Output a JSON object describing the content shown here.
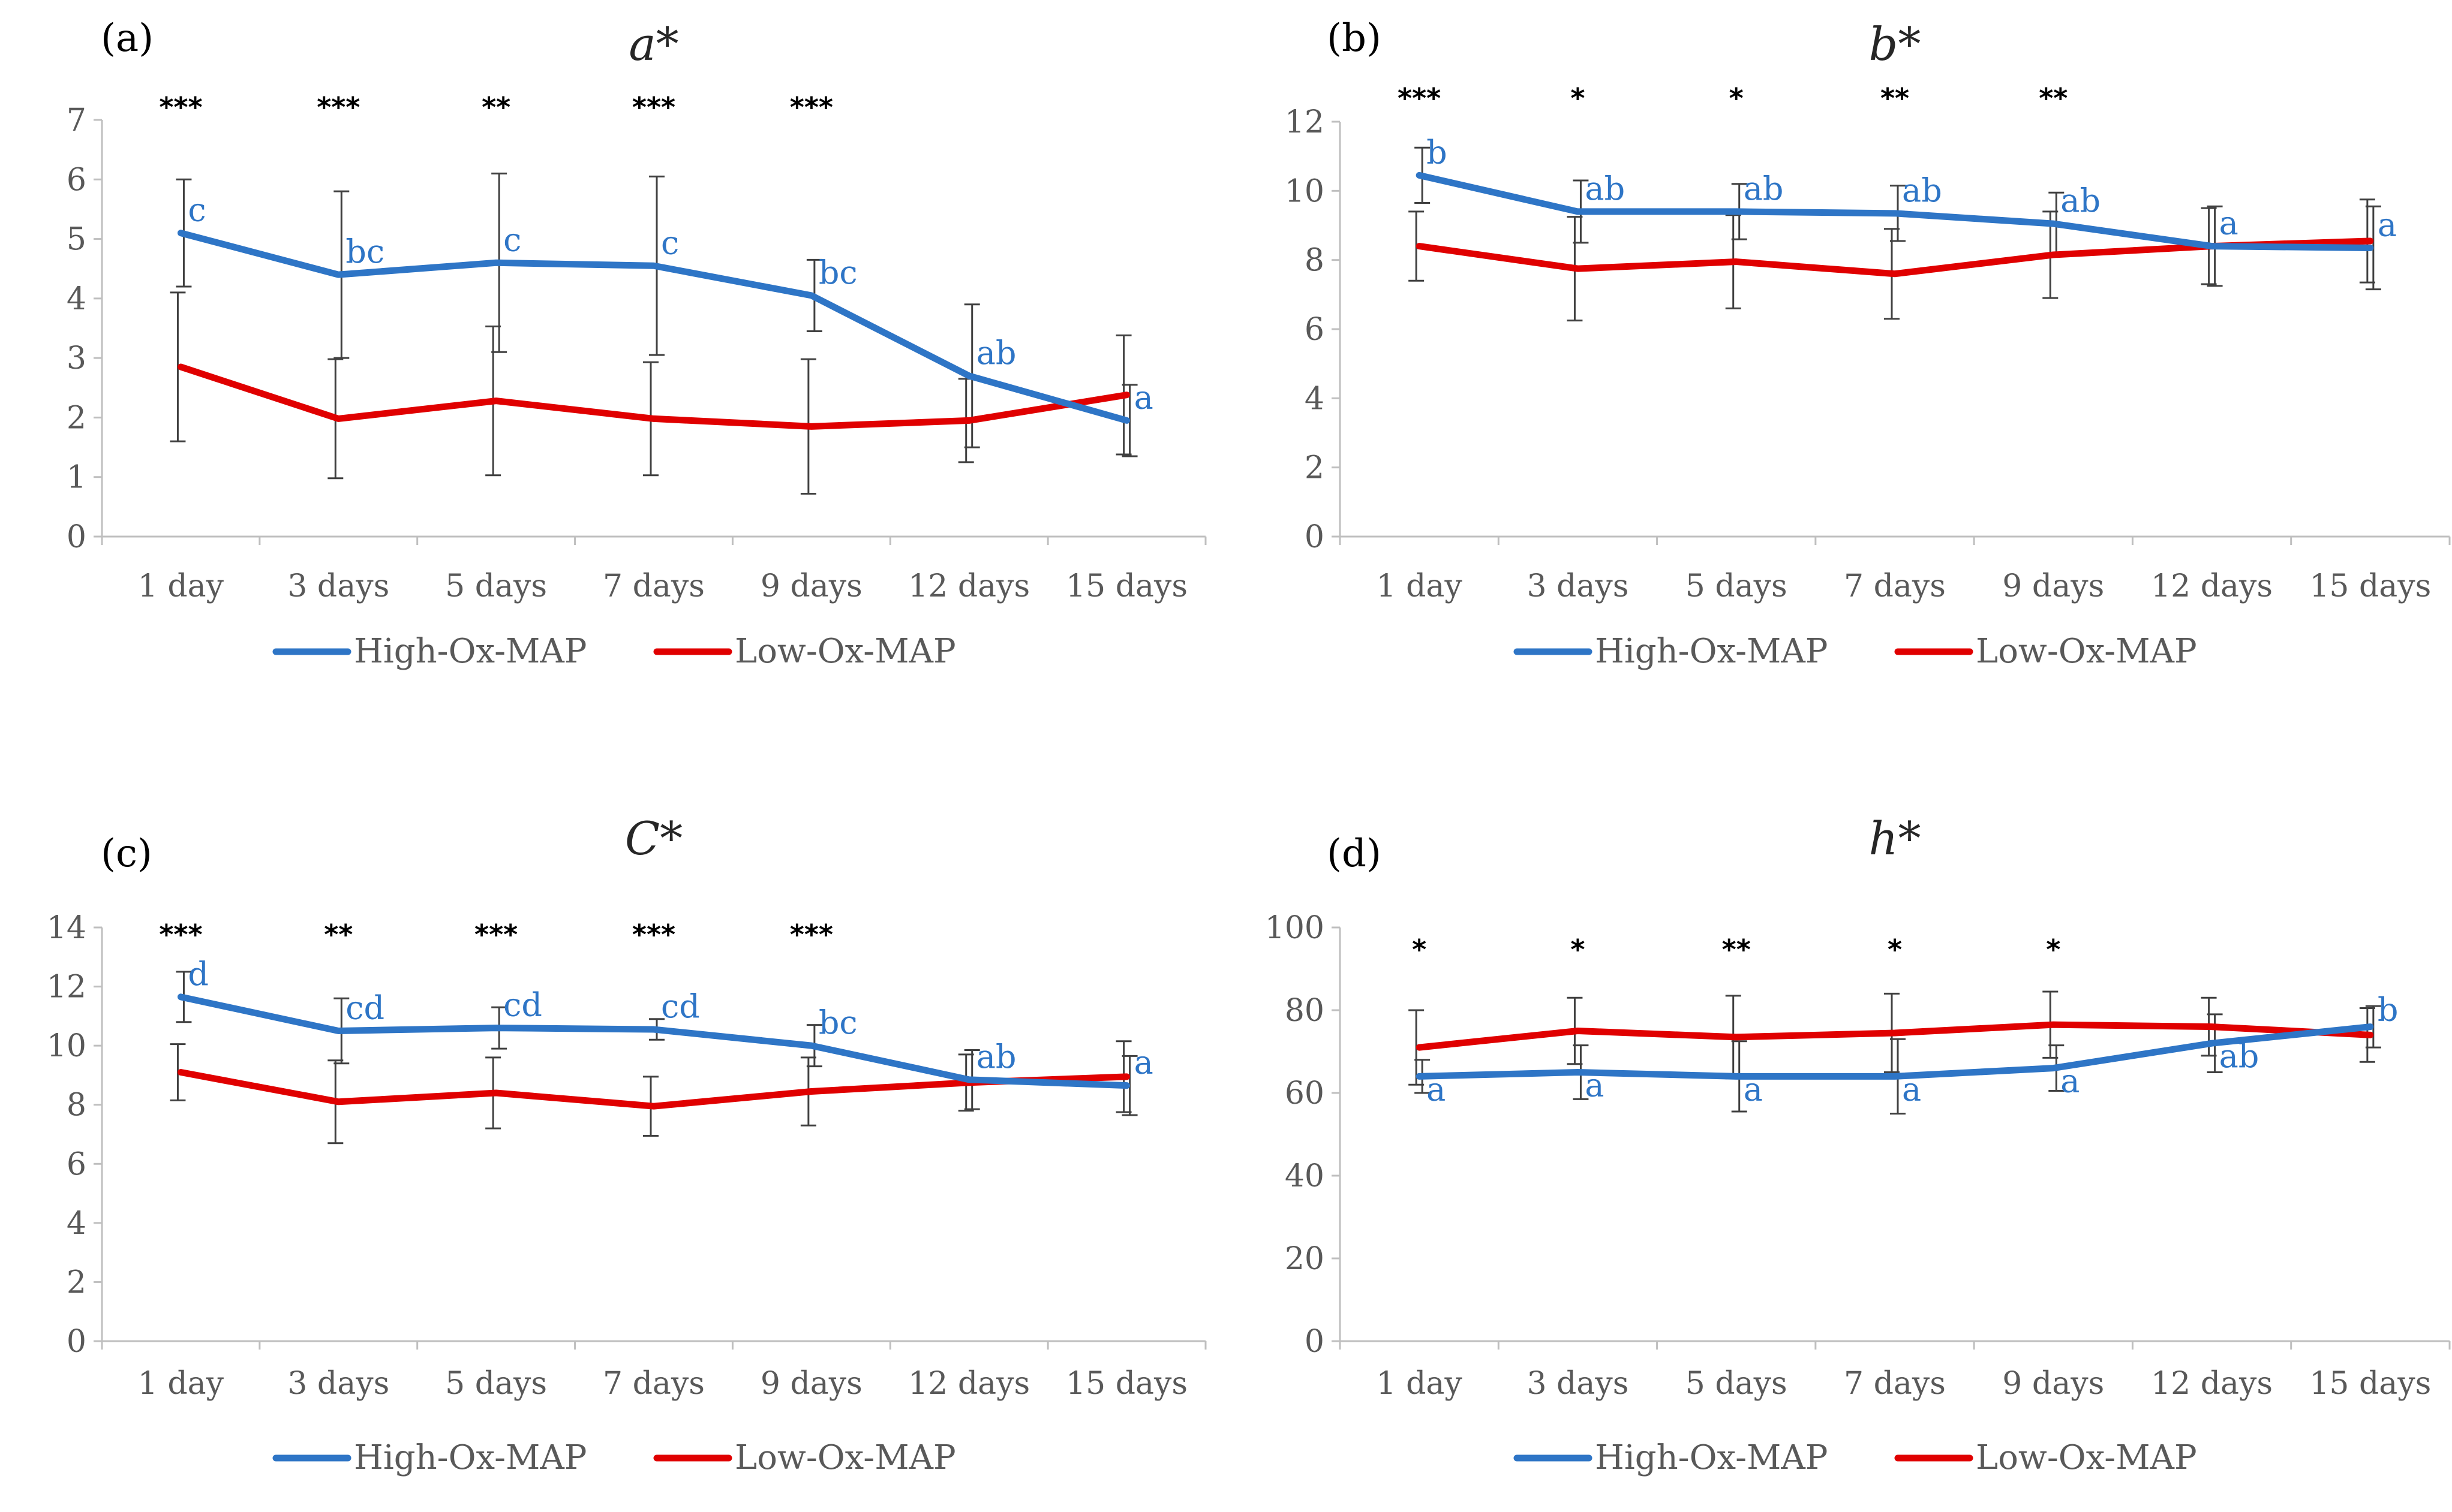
{
  "colors": {
    "high": "#2E75C6",
    "low": "#E00000",
    "axis": "#BFBFBF",
    "error": "#404040",
    "text": "#595959"
  },
  "legend": {
    "high": "High-Ox-MAP",
    "low": "Low-Ox-MAP"
  },
  "chart_data": [
    {
      "type": "line",
      "panel": "(a)",
      "title": "a*",
      "categories": [
        "1 day",
        "3 days",
        "5 days",
        "7 days",
        "9 days",
        "12 days",
        "15 days"
      ],
      "ylim": [
        0,
        7
      ],
      "yticks": [
        0,
        1,
        2,
        3,
        4,
        5,
        6,
        7
      ],
      "series": [
        {
          "name": "High-Ox-MAP",
          "values": [
            5.1,
            4.4,
            4.6,
            4.55,
            4.05,
            2.7,
            1.95
          ],
          "err": [
            0.9,
            1.4,
            1.5,
            1.5,
            0.6,
            1.2,
            0.6
          ],
          "letters": [
            "c",
            "bc",
            "c",
            "c",
            "bc",
            "ab",
            "a"
          ]
        },
        {
          "name": "Low-Ox-MAP",
          "values": [
            2.85,
            1.98,
            2.28,
            1.98,
            1.85,
            1.95,
            2.38
          ],
          "err": [
            1.25,
            1.0,
            1.25,
            0.95,
            1.13,
            0.7,
            1.0
          ]
        }
      ],
      "significance": [
        "***",
        "***",
        "**",
        "***",
        "***",
        "",
        ""
      ]
    },
    {
      "type": "line",
      "panel": "(b)",
      "title": "b*",
      "categories": [
        "1 day",
        "3 days",
        "5 days",
        "7 days",
        "9 days",
        "12 days",
        "15 days"
      ],
      "ylim": [
        0,
        12
      ],
      "yticks": [
        0,
        2,
        4,
        6,
        8,
        10,
        12
      ],
      "series": [
        {
          "name": "High-Ox-MAP",
          "values": [
            10.45,
            9.4,
            9.4,
            9.35,
            9.05,
            8.4,
            8.35
          ],
          "err": [
            0.8,
            0.9,
            0.8,
            0.8,
            0.9,
            1.15,
            1.2
          ],
          "letters": [
            "b",
            "ab",
            "ab",
            "ab",
            "ab",
            "a",
            "a"
          ]
        },
        {
          "name": "Low-Ox-MAP",
          "values": [
            8.4,
            7.75,
            7.95,
            7.6,
            8.15,
            8.4,
            8.55
          ],
          "err": [
            1.0,
            1.5,
            1.35,
            1.3,
            1.25,
            1.1,
            1.2
          ]
        }
      ],
      "significance": [
        "***",
        "*",
        "*",
        "**",
        "**",
        "",
        ""
      ]
    },
    {
      "type": "line",
      "panel": "(c)",
      "title": "C*",
      "categories": [
        "1 day",
        "3 days",
        "5 days",
        "7 days",
        "9 days",
        "12 days",
        "15 days"
      ],
      "ylim": [
        0,
        14
      ],
      "yticks": [
        0,
        2,
        4,
        6,
        8,
        10,
        12,
        14
      ],
      "series": [
        {
          "name": "High-Ox-MAP",
          "values": [
            11.65,
            10.5,
            10.6,
            10.55,
            10.0,
            8.85,
            8.65
          ],
          "err": [
            0.85,
            1.1,
            0.7,
            0.35,
            0.7,
            1.0,
            1.0
          ],
          "letters": [
            "d",
            "cd",
            "cd",
            "cd",
            "bc",
            "ab",
            "a"
          ]
        },
        {
          "name": "Low-Ox-MAP",
          "values": [
            9.1,
            8.1,
            8.4,
            7.95,
            8.45,
            8.75,
            8.95
          ],
          "err": [
            0.95,
            1.4,
            1.2,
            1.0,
            1.15,
            0.95,
            1.2
          ]
        }
      ],
      "significance": [
        "***",
        "**",
        "***",
        "***",
        "***",
        "",
        ""
      ]
    },
    {
      "type": "line",
      "panel": "(d)",
      "title": "h*",
      "categories": [
        "1 day",
        "3 days",
        "5 days",
        "7 days",
        "9 days",
        "12 days",
        "15 days"
      ],
      "ylim": [
        0,
        100
      ],
      "yticks": [
        0,
        20,
        40,
        60,
        80,
        100
      ],
      "series": [
        {
          "name": "High-Ox-MAP",
          "values": [
            64,
            65,
            64,
            64,
            66,
            72,
            76
          ],
          "err": [
            4,
            6.5,
            8.5,
            9,
            5.5,
            7,
            5
          ],
          "letters": [
            "a",
            "a",
            "a",
            "a",
            "a",
            "ab",
            "b"
          ]
        },
        {
          "name": "Low-Ox-MAP",
          "values": [
            71,
            75,
            73.5,
            74.5,
            76.5,
            76,
            74
          ],
          "err": [
            9,
            8,
            10,
            9.5,
            8,
            7,
            6.5
          ]
        }
      ],
      "significance": [
        "*",
        "*",
        "**",
        "*",
        "*",
        "",
        ""
      ]
    }
  ]
}
